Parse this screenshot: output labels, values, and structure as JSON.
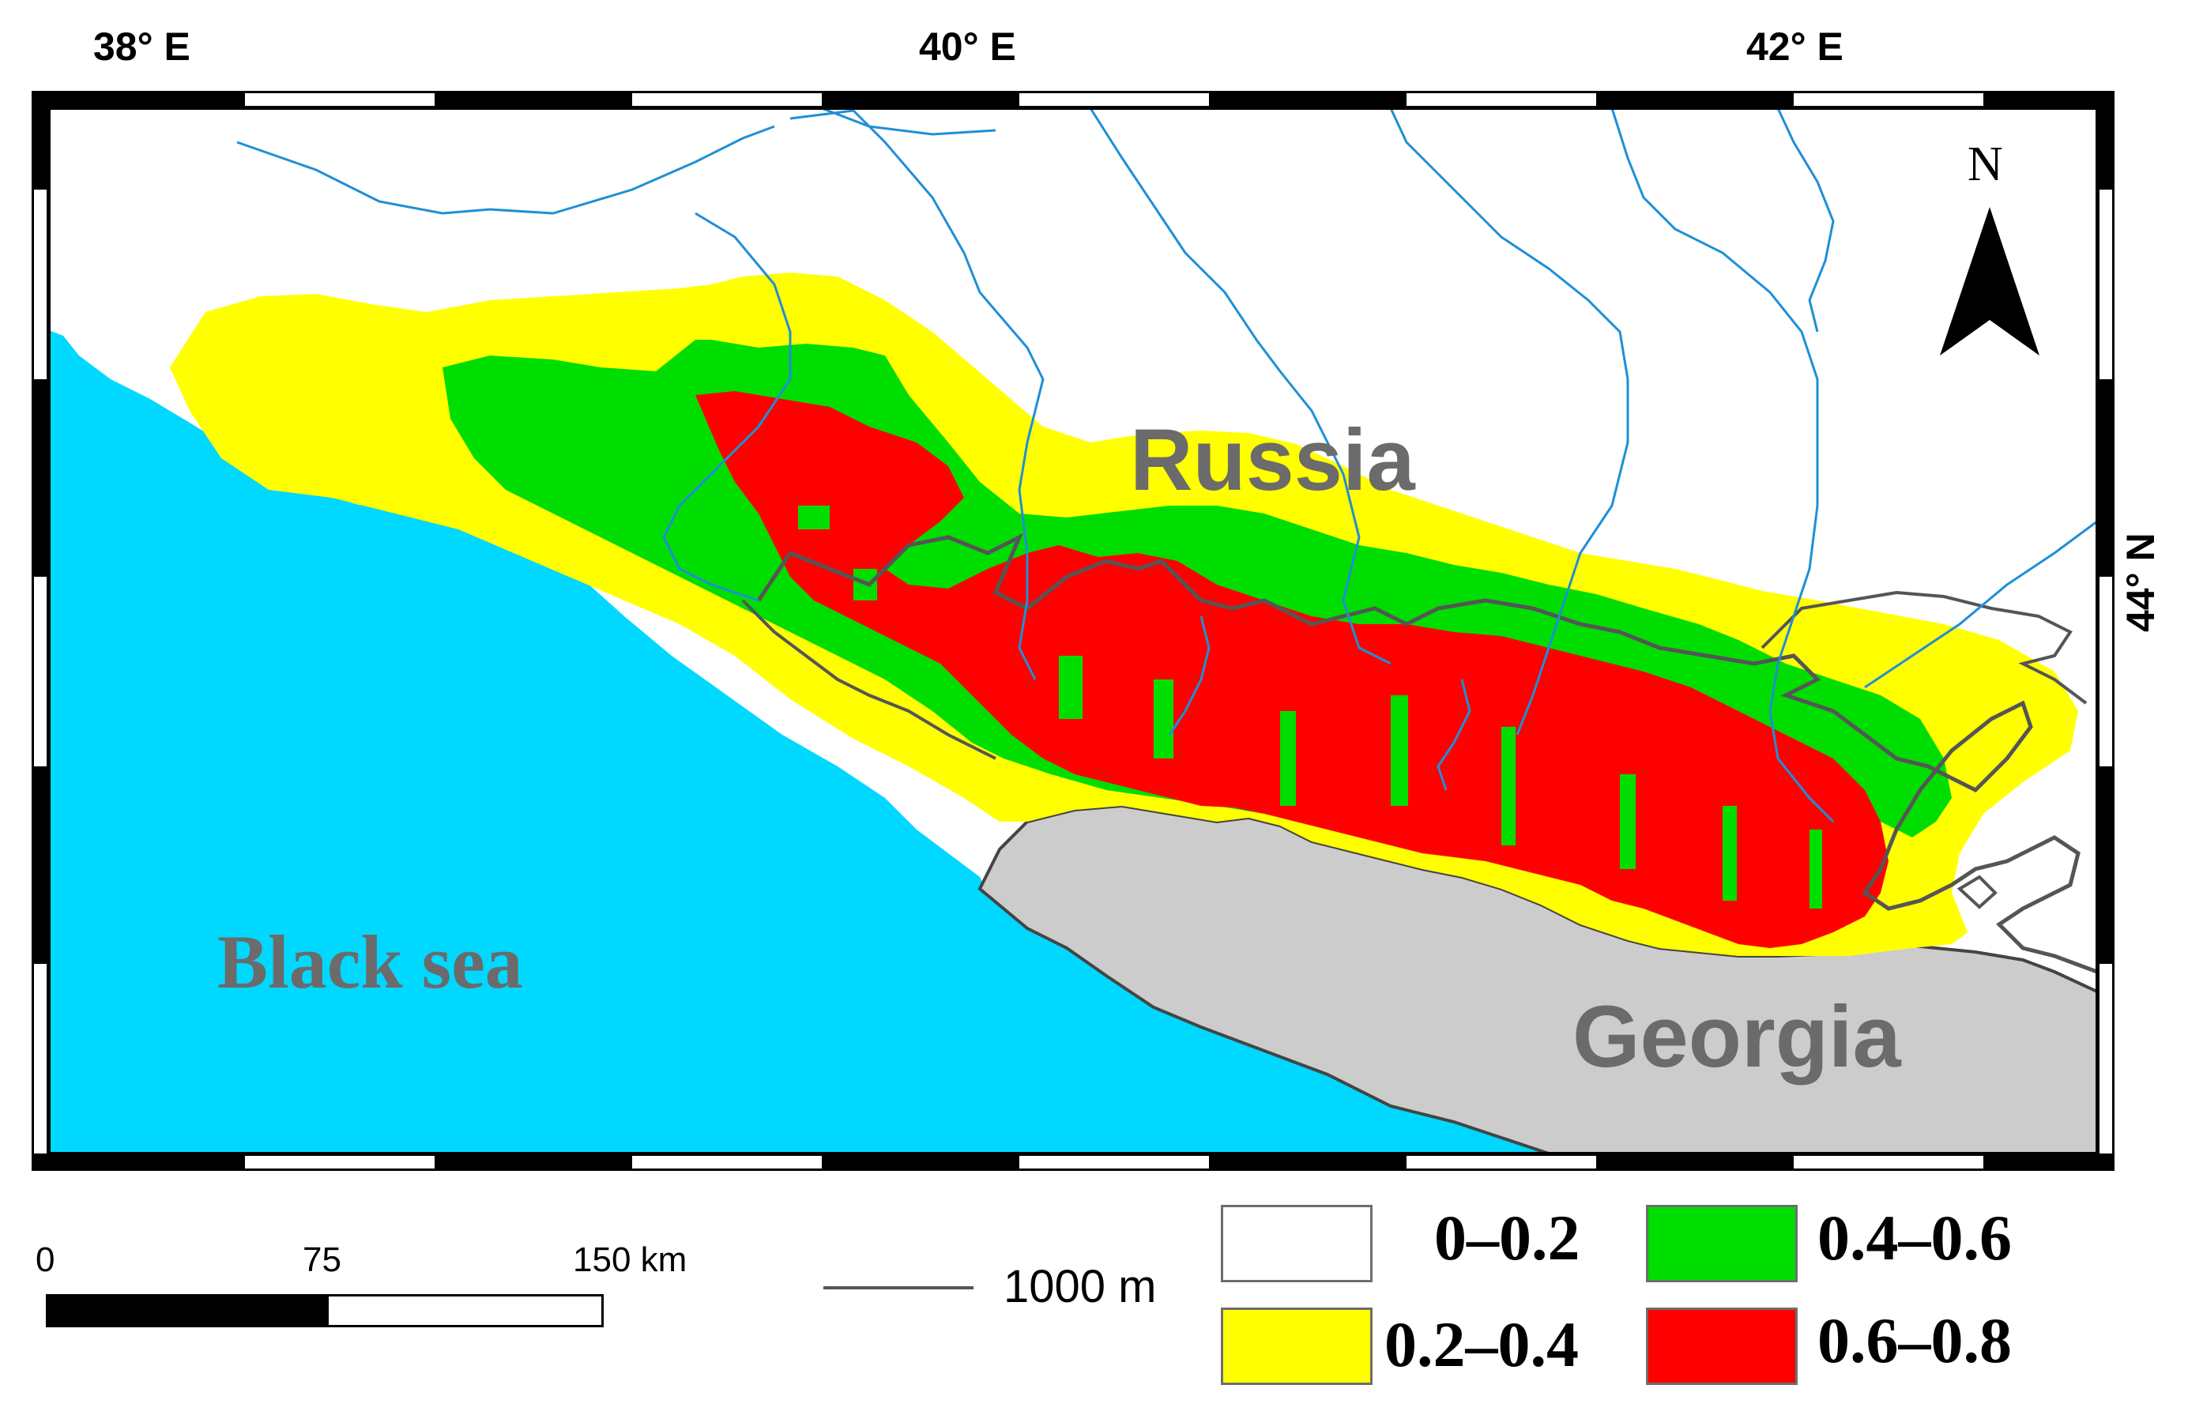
{
  "coordinates": {
    "top": [
      "38° E",
      "40° E",
      "42° E"
    ],
    "right": "44° N"
  },
  "place_labels": {
    "russia": "Russia",
    "black_sea": "Black sea",
    "georgia": "Georgia"
  },
  "north_arrow": {
    "label": "N",
    "icon": "north-arrow-icon"
  },
  "scale_bar": {
    "ticks": [
      "0",
      "75",
      "150 km"
    ]
  },
  "contour_legend": {
    "label": "1000 m"
  },
  "legend": {
    "classes": [
      {
        "label": "0–0.2",
        "color": "#ffffff"
      },
      {
        "label": "0.2–0.4",
        "color": "#ffff00"
      },
      {
        "label": "0.4–0.6",
        "color": "#00dd00"
      },
      {
        "label": "0.6–0.8",
        "color": "#ff0000"
      }
    ]
  },
  "colors": {
    "sea": "#00d8ff",
    "georgia": "#cccccc",
    "rivers": "#1f8fd6",
    "contour": "#555555"
  }
}
